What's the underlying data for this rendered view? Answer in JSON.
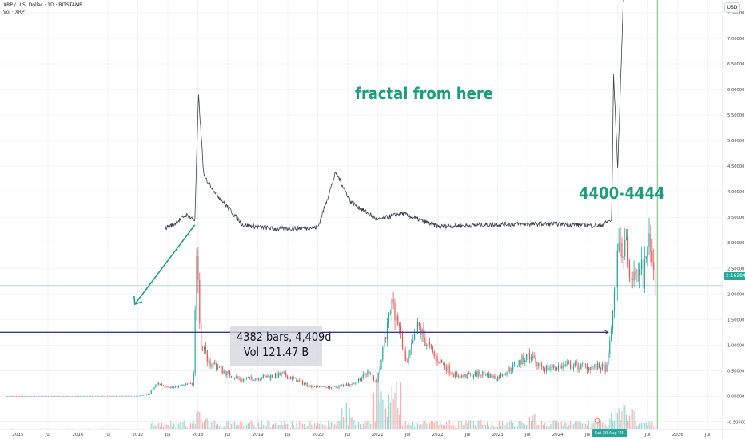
{
  "header": {
    "symbol_line": "XRP / U.S. Dollar · 1D · BITSTAMP",
    "volume_line": "Vol · XRP"
  },
  "currency_button": "USD",
  "annotations": {
    "fractal_text": "fractal from here",
    "range_text": "4400-4444",
    "measure_bars": "4382 bars, 4,409d",
    "measure_volume": "Vol 121.47 B"
  },
  "last_price_label": "2.16284",
  "cursor_date_label": "Sat 30 Aug '25",
  "colors": {
    "annotation": "#1d9d7e",
    "up": "#26a69a",
    "down": "#ef5350",
    "fractal_overlay": "#2a2e39",
    "horizontal_level": "#2f3c9e",
    "cursor_line": "#4caf50"
  },
  "chart_data": {
    "type": "candlestick",
    "symbol": "XRP / U.S. Dollar",
    "interval": "1D",
    "exchange": "BITSTAMP",
    "x_ticks": [
      "2015",
      "Jul",
      "2016",
      "Jul",
      "2017",
      "Jul",
      "2018",
      "Jul",
      "2019",
      "Jul",
      "2020",
      "Jul",
      "2021",
      "Jul",
      "2022",
      "Jul",
      "2023",
      "Jul",
      "2024",
      "Jul",
      "2025",
      "Jul",
      "2026",
      "Jul"
    ],
    "y_ticks": [
      "7.50000",
      "7.00000",
      "6.50000",
      "6.00000",
      "5.50000",
      "5.00000",
      "4.50000",
      "4.00000",
      "3.50000",
      "3.00000",
      "2.50000",
      "2.00000",
      "1.50000",
      "1.00000",
      "0.50000",
      "0.00000",
      "-0.50000"
    ],
    "y_values": [
      7.5,
      7.0,
      6.5,
      6.0,
      5.5,
      5.0,
      4.5,
      4.0,
      3.5,
      3.0,
      2.5,
      2.0,
      1.5,
      1.0,
      0.5,
      0.0,
      -0.5
    ],
    "ylim": [
      -0.65,
      7.75
    ],
    "price_series": [
      {
        "date": "2014.8",
        "value": 0.005
      },
      {
        "date": "2017.0",
        "value": 0.007
      },
      {
        "date": "2017.2",
        "value": 0.03
      },
      {
        "date": "2017.35",
        "value": 0.25
      },
      {
        "date": "2017.6",
        "value": 0.17
      },
      {
        "date": "2017.95",
        "value": 0.25
      },
      {
        "date": "2018.01",
        "value": 3.1
      },
      {
        "date": "2018.06",
        "value": 1.1
      },
      {
        "date": "2018.2",
        "value": 0.7
      },
      {
        "date": "2018.5",
        "value": 0.45
      },
      {
        "date": "2018.75",
        "value": 0.32
      },
      {
        "date": "2019.0",
        "value": 0.36
      },
      {
        "date": "2019.45",
        "value": 0.42
      },
      {
        "date": "2019.9",
        "value": 0.2
      },
      {
        "date": "2020.3",
        "value": 0.17
      },
      {
        "date": "2020.65",
        "value": 0.28
      },
      {
        "date": "2020.9",
        "value": 0.5
      },
      {
        "date": "2021.0",
        "value": 0.22
      },
      {
        "date": "2021.28",
        "value": 1.9
      },
      {
        "date": "2021.5",
        "value": 0.6
      },
      {
        "date": "2021.7",
        "value": 1.35
      },
      {
        "date": "2021.95",
        "value": 0.8
      },
      {
        "date": "2022.35",
        "value": 0.38
      },
      {
        "date": "2022.8",
        "value": 0.45
      },
      {
        "date": "2023.0",
        "value": 0.35
      },
      {
        "date": "2023.55",
        "value": 0.8
      },
      {
        "date": "2023.8",
        "value": 0.55
      },
      {
        "date": "2024.2",
        "value": 0.6
      },
      {
        "date": "2024.85",
        "value": 0.55
      },
      {
        "date": "2025.0",
        "value": 2.3
      },
      {
        "date": "2025.05",
        "value": 3.2
      },
      {
        "date": "2025.35",
        "value": 2.1
      },
      {
        "date": "2025.55",
        "value": 2.8
      },
      {
        "date": "2025.65",
        "value": 2.16
      }
    ],
    "fractal_overlay_series": [
      {
        "date": "2017.45",
        "value": 3.29
      },
      {
        "date": "2017.6",
        "value": 3.36
      },
      {
        "date": "2017.8",
        "value": 3.55
      },
      {
        "date": "2017.95",
        "value": 3.44
      },
      {
        "date": "2018.01",
        "value": 5.9
      },
      {
        "date": "2018.1",
        "value": 4.3
      },
      {
        "date": "2018.35",
        "value": 3.9
      },
      {
        "date": "2018.75",
        "value": 3.35
      },
      {
        "date": "2019.3",
        "value": 3.27
      },
      {
        "date": "2020.0",
        "value": 3.3
      },
      {
        "date": "2020.3",
        "value": 4.38
      },
      {
        "date": "2020.55",
        "value": 3.8
      },
      {
        "date": "2021.0",
        "value": 3.45
      },
      {
        "date": "2021.4",
        "value": 3.58
      },
      {
        "date": "2022.0",
        "value": 3.32
      },
      {
        "date": "2023.0",
        "value": 3.36
      },
      {
        "date": "2024.0",
        "value": 3.37
      },
      {
        "date": "2024.7",
        "value": 3.33
      },
      {
        "date": "2024.9",
        "value": 3.45
      },
      {
        "date": "2024.93",
        "value": 6.3
      },
      {
        "date": "2025.0",
        "value": 4.45
      },
      {
        "date": "2025.1",
        "value": 8.0
      }
    ],
    "horizontal_level": 1.25,
    "last_price": 2.16284,
    "cursor_date": "2025.66"
  }
}
